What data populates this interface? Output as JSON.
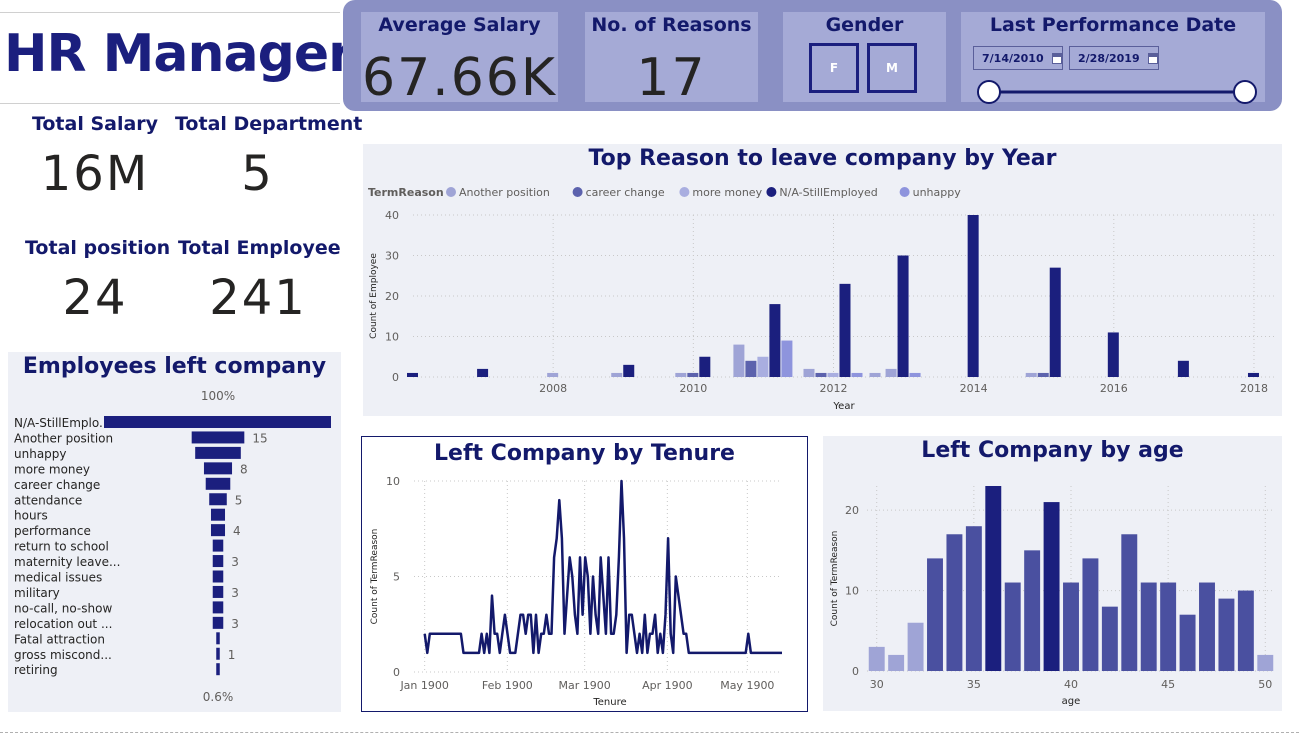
{
  "header": {
    "title": "HR Manager"
  },
  "kpis": {
    "total_salary_label": "Total Salary",
    "total_salary": "16M",
    "total_department_label": "Total Department",
    "total_department": "5",
    "total_position_label": "Total position",
    "total_position": "24",
    "total_employee_label": "Total Employee",
    "total_employee": "241"
  },
  "banner": {
    "avg_salary_label": "Average Salary",
    "avg_salary": "67.66K",
    "reasons_label": "No. of Reasons",
    "reasons": "17",
    "gender_label": "Gender",
    "gender_f": "F",
    "gender_m": "M",
    "date_label": "Last Performance Date",
    "date_start": "7/14/2010",
    "date_end": "2/28/2019"
  },
  "colors": {
    "navy": "#13196b",
    "bar_dark": "#1b1f7e",
    "bar_mid": "#4a50a0",
    "bar_light": "#9fa4d6"
  },
  "chart_data": [
    {
      "id": "reason_by_year",
      "type": "bar",
      "title": "Top Reason to leave company by Year",
      "legend_title": "TermReason",
      "legend_position": "top-left",
      "xlabel": "Year",
      "ylabel": "Count of Employee",
      "ylim": [
        0,
        40
      ],
      "yticks": [
        0,
        10,
        20,
        30,
        40
      ],
      "xlim": [
        2006,
        2018.3
      ],
      "xticks": [
        2008,
        2010,
        2012,
        2014,
        2016,
        2018
      ],
      "series": [
        {
          "name": "Another position",
          "color": "#9fa4d6",
          "points": [
            [
              2008,
              1
            ],
            [
              2009,
              1
            ],
            [
              2010,
              1
            ],
            [
              2011,
              8
            ],
            [
              2012,
              2
            ],
            [
              2012.6,
              1
            ],
            [
              2013,
              2
            ],
            [
              2015,
              1
            ]
          ]
        },
        {
          "name": "career change",
          "color": "#5c62ad",
          "points": [
            [
              2010,
              1
            ],
            [
              2011,
              4
            ],
            [
              2012,
              1
            ],
            [
              2015,
              1
            ]
          ]
        },
        {
          "name": "more money",
          "color": "#a9aee0",
          "points": [
            [
              2011,
              5
            ],
            [
              2012,
              1
            ]
          ]
        },
        {
          "name": "N/A-StillEmployed",
          "color": "#1b1f7e",
          "points": [
            [
              2006,
              1
            ],
            [
              2007,
              2
            ],
            [
              2009,
              3
            ],
            [
              2010,
              5
            ],
            [
              2011,
              18
            ],
            [
              2012,
              23
            ],
            [
              2013,
              30
            ],
            [
              2014,
              40
            ],
            [
              2015,
              27
            ],
            [
              2016,
              11
            ],
            [
              2017,
              4
            ],
            [
              2018,
              1
            ]
          ]
        },
        {
          "name": "unhappy",
          "color": "#8e94dd",
          "points": [
            [
              2011,
              9
            ],
            [
              2012,
              1
            ],
            [
              2013,
              1
            ]
          ]
        }
      ]
    },
    {
      "id": "left_company",
      "type": "bar",
      "title": "Employees left company",
      "top_label": "100%",
      "bottom_label": "0.6%",
      "categories": [
        "N/A-StillEmplo...",
        "Another position",
        "unhappy",
        "more money",
        "career change",
        "attendance",
        "hours",
        "performance",
        "return to school",
        "maternity leave...",
        "medical issues",
        "military",
        "no-call, no-show",
        "relocation out ...",
        "Fatal attraction",
        "gross miscond...",
        "retiring"
      ],
      "values": [
        207,
        15,
        13,
        8,
        7,
        5,
        4,
        4,
        3,
        3,
        3,
        3,
        3,
        3,
        1,
        1,
        1
      ],
      "data_labels": [
        "",
        "15",
        "",
        "8",
        "",
        "5",
        "",
        "4",
        "",
        "3",
        "",
        "3",
        "",
        "3",
        "",
        "1",
        ""
      ]
    },
    {
      "id": "tenure",
      "type": "line",
      "title": "Left Company by Tenure",
      "xlabel": "Tenure",
      "ylabel": "Count of TermReason",
      "ylim": [
        0,
        10
      ],
      "yticks": [
        0,
        5,
        10
      ],
      "xlim": [
        0,
        138
      ],
      "xticks": [
        {
          "v": 4,
          "label": "Jan 1900"
        },
        {
          "v": 35,
          "label": "Feb 1900"
        },
        {
          "v": 64,
          "label": "Mar 1900"
        },
        {
          "v": 95,
          "label": "Apr 1900"
        },
        {
          "v": 125,
          "label": "May 1900"
        }
      ],
      "y": [
        2,
        1,
        2,
        2,
        2,
        2,
        2,
        2,
        2,
        2,
        2,
        2,
        2,
        2,
        2,
        1,
        1,
        1,
        1,
        1,
        1,
        1,
        2,
        1,
        2,
        1,
        4,
        2,
        2,
        1,
        2,
        3,
        2,
        1,
        1,
        1,
        2,
        3,
        3,
        2,
        3,
        3,
        1,
        3,
        1,
        2,
        2,
        3,
        2,
        2,
        6,
        7,
        9,
        7,
        2,
        4,
        6,
        5,
        3,
        2,
        6,
        3,
        6,
        5,
        2,
        5,
        3,
        2,
        6,
        4,
        2,
        6,
        2,
        2,
        3,
        6,
        10,
        7,
        1,
        3,
        3,
        2,
        1,
        2,
        1,
        3,
        1,
        2,
        2,
        3,
        1,
        2,
        1,
        3,
        7,
        2,
        1,
        5,
        4,
        3,
        2,
        2,
        1,
        1,
        1,
        1,
        1,
        1,
        1,
        1,
        1,
        1,
        1,
        1,
        1,
        1,
        1,
        1,
        1,
        1,
        1,
        1,
        1,
        1,
        1,
        2,
        1,
        1,
        1,
        1,
        1,
        1,
        1,
        1,
        1,
        1,
        1,
        1,
        1
      ]
    },
    {
      "id": "by_age",
      "type": "bar",
      "title": "Left Company by age",
      "xlabel": "age",
      "ylabel": "Count of TermReason",
      "ylim": [
        0,
        23
      ],
      "yticks": [
        0,
        10,
        20
      ],
      "xticks": [
        30,
        35,
        40,
        45,
        50
      ],
      "categories": [
        30,
        31,
        32,
        33,
        34,
        35,
        36,
        37,
        38,
        39,
        40,
        41,
        42,
        43,
        44,
        45,
        46,
        47,
        48,
        49,
        50
      ],
      "values": [
        3,
        2,
        6,
        14,
        17,
        18,
        23,
        11,
        15,
        21,
        11,
        14,
        8,
        17,
        11,
        11,
        7,
        11,
        9,
        10,
        2
      ]
    }
  ]
}
